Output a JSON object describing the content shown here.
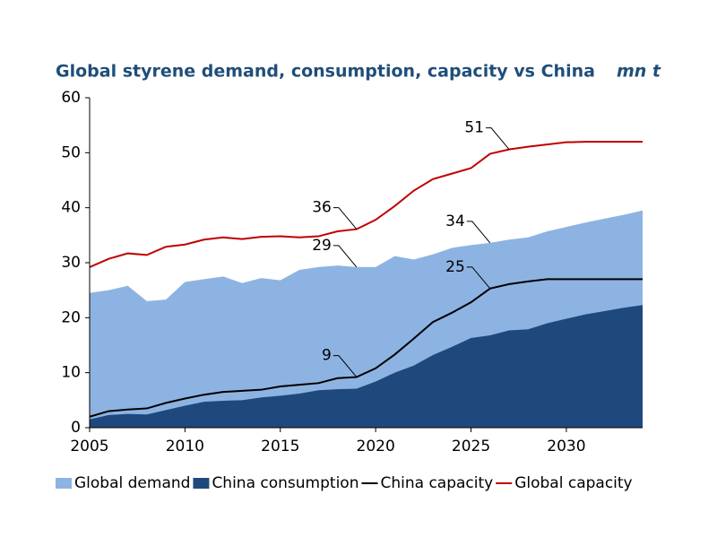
{
  "chart_data": {
    "type": "area-line",
    "title": "Global styrene demand, consumption, capacity vs China",
    "unit": "mn t",
    "x": [
      2005,
      2006,
      2007,
      2008,
      2009,
      2010,
      2011,
      2012,
      2013,
      2014,
      2015,
      2016,
      2017,
      2018,
      2019,
      2020,
      2021,
      2022,
      2023,
      2024,
      2025,
      2026,
      2027,
      2028,
      2029,
      2030,
      2031,
      2032,
      2033,
      2034
    ],
    "xlim": [
      2005,
      2034
    ],
    "xticks": [
      2005,
      2010,
      2015,
      2020,
      2025,
      2030
    ],
    "ylim": [
      0,
      60
    ],
    "yticks": [
      0,
      10,
      20,
      30,
      40,
      50,
      60
    ],
    "series": [
      {
        "name": "Global demand",
        "type": "area",
        "color": "#8db3e2",
        "values": [
          24.5,
          25,
          25.8,
          23,
          23.3,
          26.5,
          27,
          27.5,
          26.3,
          27.2,
          26.8,
          28.7,
          29.2,
          29.5,
          29.2,
          29.2,
          31.2,
          30.6,
          31.5,
          32.7,
          33.2,
          33.6,
          34.2,
          34.6,
          35.7,
          36.5,
          37.3,
          38,
          38.7,
          39.5
        ],
        "value_labels": [
          null,
          null,
          null,
          null,
          null,
          null,
          null,
          null,
          null,
          null,
          null,
          null,
          null,
          null,
          "29",
          null,
          null,
          null,
          null,
          null,
          null,
          "34",
          null,
          null,
          null,
          null,
          null,
          null,
          null,
          null
        ]
      },
      {
        "name": "China consumption",
        "type": "area",
        "color": "#1f497d",
        "values": [
          1.5,
          2.3,
          2.5,
          2.4,
          3.2,
          4,
          4.7,
          4.9,
          5,
          5.5,
          5.8,
          6.2,
          6.8,
          7,
          7.1,
          8.4,
          10,
          11.3,
          13.2,
          14.7,
          16.3,
          16.8,
          17.7,
          17.9,
          19,
          19.8,
          20.6,
          21.2,
          21.8,
          22.3
        ]
      },
      {
        "name": "China capacity",
        "type": "line",
        "color": "#000000",
        "values": [
          2,
          3,
          3.3,
          3.5,
          4.5,
          5.3,
          6,
          6.5,
          6.7,
          6.9,
          7.5,
          7.8,
          8.1,
          9,
          9.2,
          10.8,
          13.3,
          16.2,
          19.2,
          20.9,
          22.8,
          25.3,
          26.1,
          26.6,
          27,
          27,
          27,
          27,
          27,
          27
        ],
        "value_labels": [
          null,
          null,
          null,
          null,
          null,
          null,
          null,
          null,
          null,
          null,
          null,
          null,
          null,
          null,
          "9",
          null,
          null,
          null,
          null,
          null,
          null,
          "25",
          null,
          null,
          null,
          null,
          null,
          null,
          null,
          null
        ]
      },
      {
        "name": "Global capacity",
        "type": "line",
        "color": "#c00000",
        "values": [
          29.2,
          30.7,
          31.7,
          31.4,
          32.9,
          33.3,
          34.2,
          34.6,
          34.3,
          34.7,
          34.8,
          34.6,
          34.8,
          35.7,
          36.1,
          37.8,
          40.3,
          43.1,
          45.2,
          46.2,
          47.2,
          49.8,
          50.6,
          51.1,
          51.5,
          51.9,
          52,
          52,
          52,
          52
        ],
        "value_labels": [
          null,
          null,
          null,
          null,
          null,
          null,
          null,
          null,
          null,
          null,
          null,
          null,
          null,
          null,
          "36",
          null,
          null,
          null,
          null,
          null,
          null,
          null,
          "51",
          null,
          null,
          null,
          null,
          null,
          null,
          null
        ]
      }
    ]
  }
}
